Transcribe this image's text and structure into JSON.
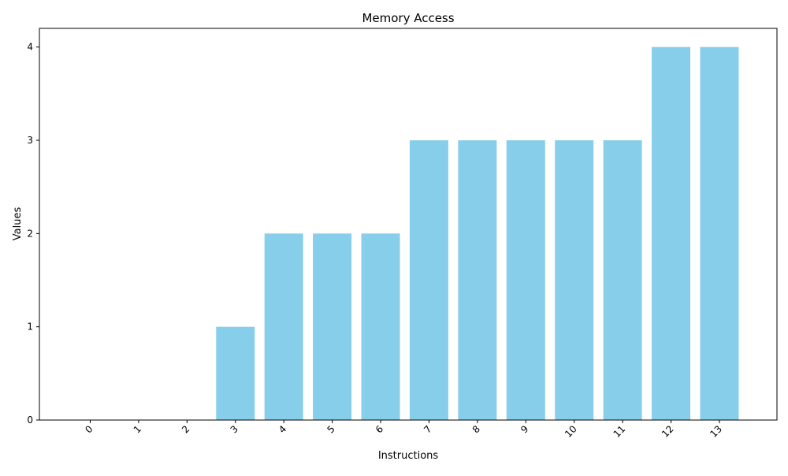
{
  "chart_data": {
    "type": "bar",
    "title": "Memory Access",
    "xlabel": "Instructions",
    "ylabel": "Values",
    "categories": [
      "0",
      "1",
      "2",
      "3",
      "4",
      "5",
      "6",
      "7",
      "8",
      "9",
      "10",
      "11",
      "12",
      "13"
    ],
    "values": [
      0,
      0,
      0,
      1,
      2,
      2,
      2,
      3,
      3,
      3,
      3,
      3,
      4,
      4
    ],
    "yticks": [
      "0",
      "1",
      "2",
      "3",
      "4"
    ],
    "ylim": [
      0,
      4.2
    ],
    "grid": false,
    "bar_color": "#87ceeb",
    "x_tick_rotation": "45 degrees"
  }
}
